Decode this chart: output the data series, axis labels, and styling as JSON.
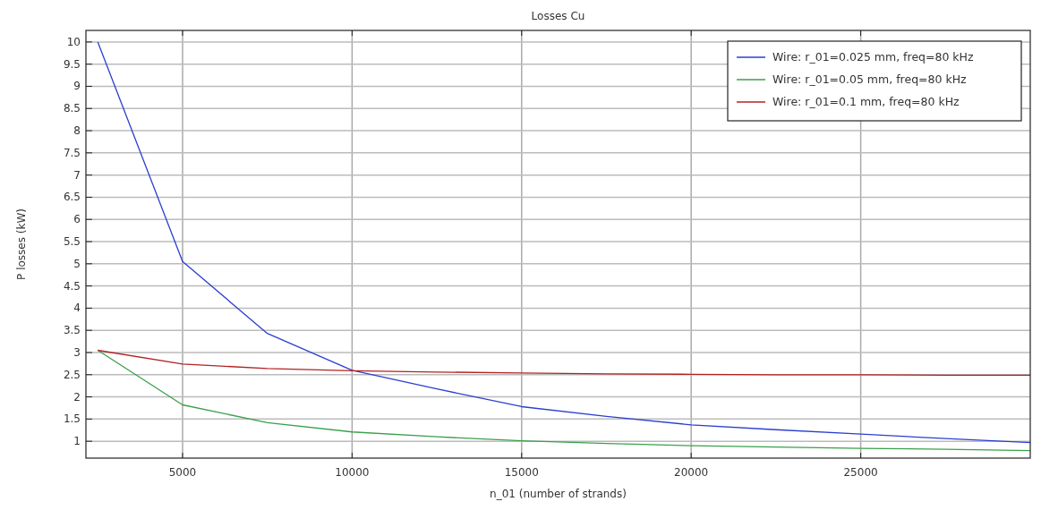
{
  "chart_data": {
    "type": "line",
    "title": "Losses Cu",
    "xlabel": "n_01 (number of strands)",
    "ylabel": "P losses (kW)",
    "x": [
      2500,
      5000,
      7500,
      10000,
      12500,
      15000,
      17500,
      20000,
      22500,
      25000,
      27500,
      30000
    ],
    "series": [
      {
        "name": "Wire: r_01=0.025 mm, freq=80 kHz",
        "color": "#2a3fd0",
        "values": [
          10,
          5.05,
          3.43,
          2.6,
          2.18,
          1.78,
          1.56,
          1.37,
          1.26,
          1.16,
          1.06,
          0.97
        ]
      },
      {
        "name": "Wire: r_01=0.05 mm, freq=80 kHz",
        "color": "#3aa04a",
        "values": [
          3.05,
          1.82,
          1.42,
          1.21,
          1.1,
          1.01,
          0.95,
          0.9,
          0.87,
          0.84,
          0.82,
          0.79
        ]
      },
      {
        "name": "Wire: r_01=0.1 mm, freq=80 kHz",
        "color": "#b22222",
        "values": [
          3.05,
          2.74,
          2.64,
          2.59,
          2.56,
          2.54,
          2.52,
          2.51,
          2.5,
          2.5,
          2.49,
          2.49
        ]
      }
    ],
    "xlim": [
      2150,
      30000
    ],
    "xticks": [
      5000,
      10000,
      15000,
      20000,
      25000
    ],
    "ylim": [
      0.62,
      10.26
    ],
    "yticks": [
      1,
      1.5,
      2,
      2.5,
      3,
      3.5,
      4,
      4.5,
      5,
      5.5,
      6,
      6.5,
      7,
      7.5,
      8,
      8.5,
      9,
      9.5,
      10
    ],
    "grid": true,
    "legend": "top right",
    "marker": "none",
    "line_style": "solid"
  }
}
